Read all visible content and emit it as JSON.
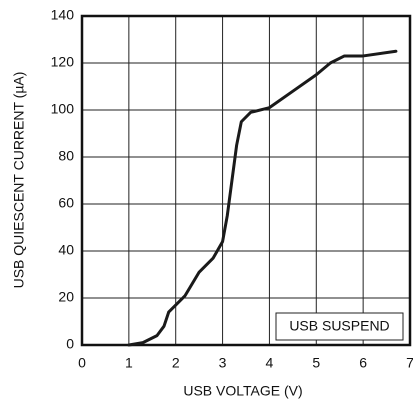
{
  "chart_data": {
    "type": "line",
    "xlabel": "USB VOLTAGE (V)",
    "ylabel": "USB QUIESCENT CURRENT (µA)",
    "annotation": "USB SUSPEND",
    "x": [
      1.0,
      1.3,
      1.6,
      1.75,
      1.85,
      2.0,
      2.2,
      2.5,
      2.8,
      3.0,
      3.1,
      3.2,
      3.3,
      3.4,
      3.6,
      4.0,
      4.5,
      5.0,
      5.3,
      5.6,
      6.0,
      6.7
    ],
    "values": [
      0,
      1,
      4,
      8,
      14,
      17,
      21,
      31,
      37,
      44,
      55,
      70,
      85,
      95,
      99,
      101,
      108,
      115,
      120,
      123,
      123,
      125
    ],
    "color": "#1a1a1a",
    "xlim": [
      0,
      7
    ],
    "xticks": [
      0,
      1,
      2,
      3,
      4,
      5,
      6,
      7
    ],
    "ylim": [
      0,
      140
    ],
    "yticks": [
      0,
      20,
      40,
      60,
      80,
      100,
      120,
      140
    ],
    "grid": true
  }
}
